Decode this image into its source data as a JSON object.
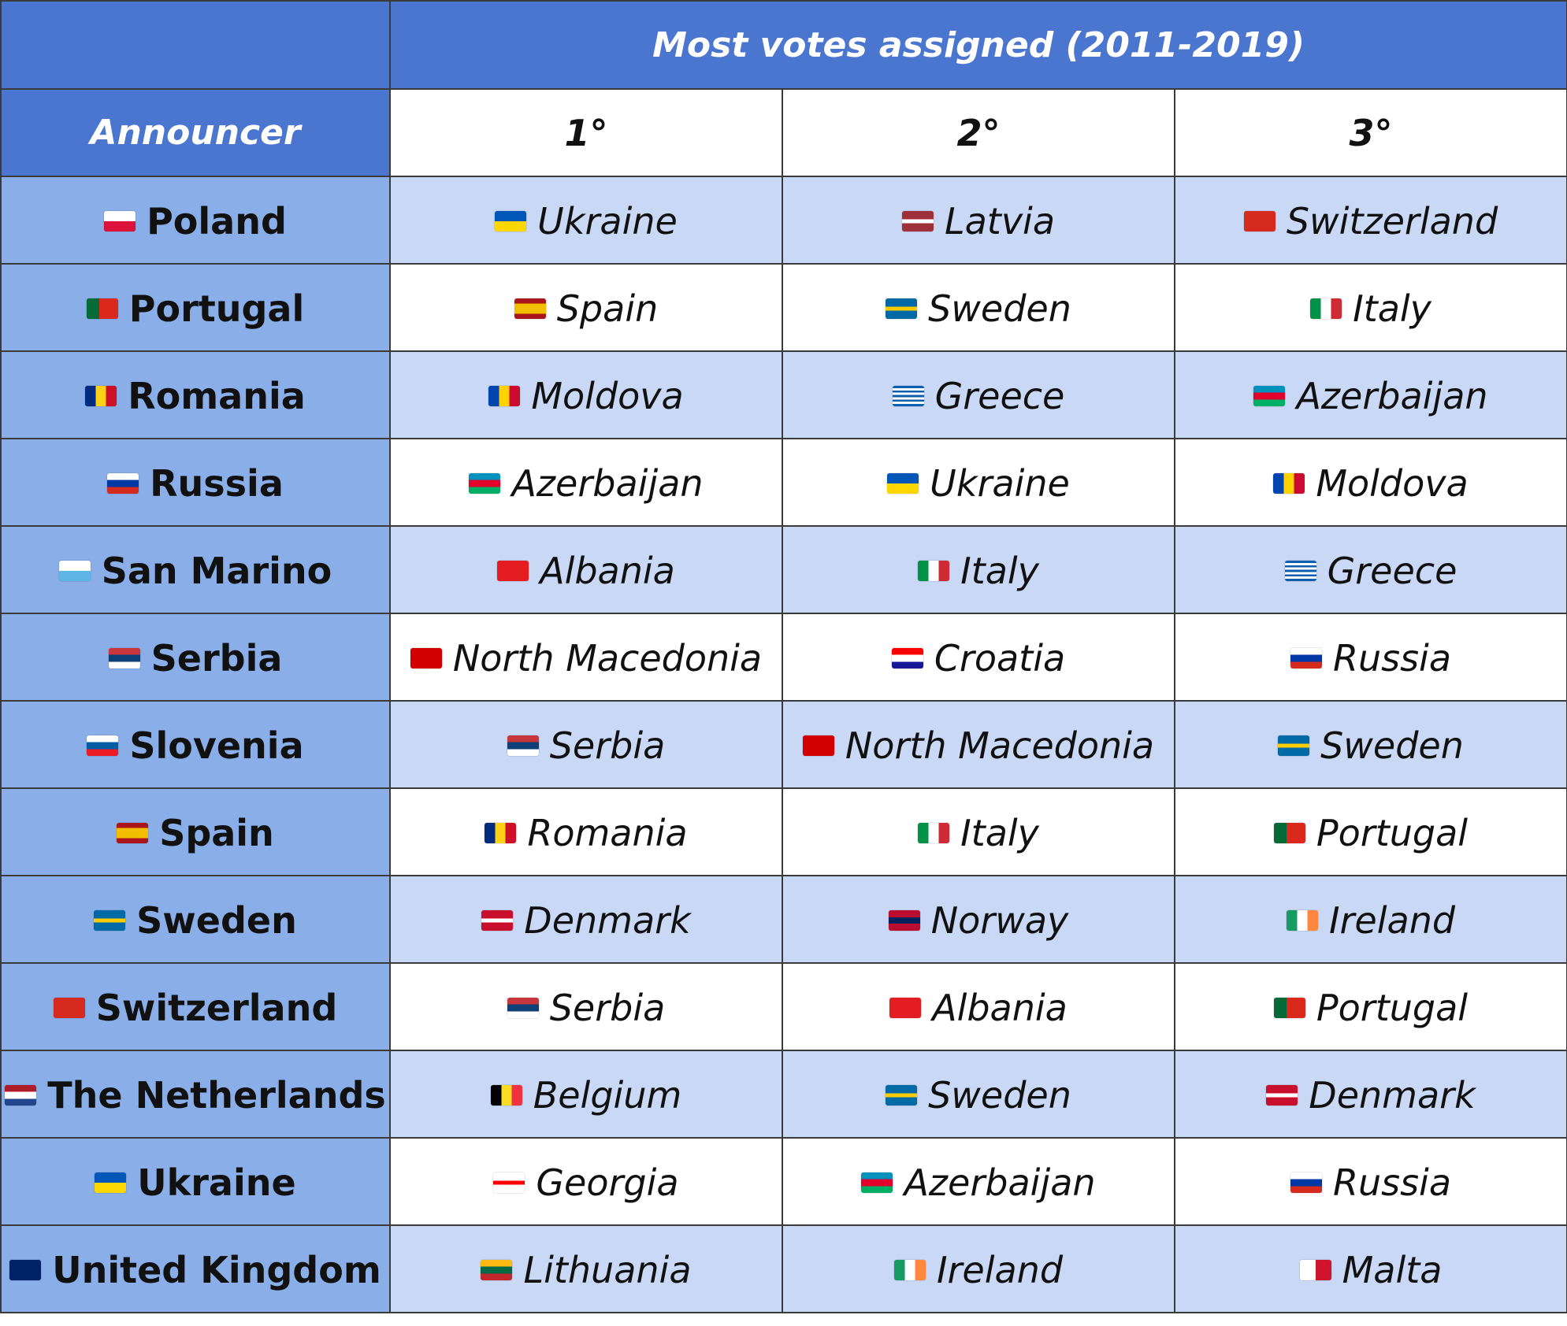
{
  "title": "Most votes assigned (2011-2019)",
  "announcer_header": "Announcer",
  "rank_headers": [
    "1°",
    "2°",
    "3°"
  ],
  "flags": {
    "Poland": "linear-gradient(#ffffff 0 50%, #dc143c 50% 100%)",
    "Portugal": "linear-gradient(90deg, #046a38 0 40%, #da291c 40% 100%)",
    "Romania": "linear-gradient(90deg, #002b7f 0 33.3%, #fcd116 33.3% 66.6%, #ce1126 66.6% 100%)",
    "Russia": "linear-gradient(#ffffff 0 33.3%, #0039a6 33.3% 66.6%, #d52b1e 66.6% 100%)",
    "San Marino": "linear-gradient(#ffffff 0 50%, #5eb6e4 50% 100%)",
    "Serbia": "linear-gradient(#c6363c 0 33.3%, #0c4076 33.3% 66.6%, #ffffff 66.6% 100%)",
    "Slovenia": "linear-gradient(#ffffff 0 33.3%, #005da4 33.3% 66.6%, #ed1c24 66.6% 100%)",
    "Spain": "linear-gradient(#aa151b 0 25%, #f1bf00 25% 75%, #aa151b 75% 100%)",
    "Sweden": "linear-gradient(#006aa7 0 40%, #fecc00 40% 60%, #006aa7 60% 100%)",
    "Switzerland": "linear-gradient(#d52b1e, #d52b1e)",
    "The Netherlands": "linear-gradient(#ae1c28 0 33.3%, #ffffff 33.3% 66.6%, #21468b 66.6% 100%)",
    "Ukraine": "linear-gradient(#0057b7 0 50%, #ffd700 50% 100%)",
    "United Kingdom": "linear-gradient(#012169, #012169)",
    "Latvia": "linear-gradient(#9e3039 0 40%, #ffffff 40% 60%, #9e3039 60% 100%)",
    "Italy": "linear-gradient(90deg, #009246 0 33.3%, #ffffff 33.3% 66.6%, #ce2b37 66.6% 100%)",
    "Moldova": "linear-gradient(90deg, #0046ae 0 33.3%, #ffd200 33.3% 66.6%, #cc092f 66.6% 100%)",
    "Greece": "repeating-linear-gradient(#0d5eaf 0 11.1%, #ffffff 11.1% 22.2%)",
    "Azerbaijan": "linear-gradient(#0092bc 0 33.3%, #e4002b 33.3% 66.6%, #00af66 66.6% 100%)",
    "Albania": "linear-gradient(#e41e20, #e41e20)",
    "North Macedonia": "linear-gradient(#d20000, #d20000)",
    "Croatia": "linear-gradient(#ff0000 0 33.3%, #ffffff 33.3% 66.6%, #171796 66.6% 100%)",
    "Denmark": "linear-gradient(#c8102e 0 40%, #ffffff 40% 60%, #c8102e 60% 100%)",
    "Norway": "linear-gradient(#ba0c2f 0 35%, #00205b 35% 65%, #ba0c2f 65% 100%)",
    "Ireland": "linear-gradient(90deg, #169b62 0 33.3%, #ffffff 33.3% 66.6%, #ff883e 66.6% 100%)",
    "Belgium": "linear-gradient(90deg, #000000 0 33.3%, #fdda24 33.3% 66.6%, #ef3340 66.6% 100%)",
    "Georgia": "linear-gradient(#ffffff 0 40%, #ff0000 40% 60%, #ffffff 60% 100%)",
    "Lithuania": "linear-gradient(#fdb913 0 33.3%, #006a44 33.3% 66.6%, #c1272d 66.6% 100%)",
    "Malta": "linear-gradient(90deg, #ffffff 0 50%, #cf142b 50% 100%)"
  },
  "rows": [
    {
      "announcer": "Poland",
      "first": "Ukraine",
      "second": "Latvia",
      "third": "Switzerland"
    },
    {
      "announcer": "Portugal",
      "first": "Spain",
      "second": "Sweden",
      "third": "Italy"
    },
    {
      "announcer": "Romania",
      "first": "Moldova",
      "second": "Greece",
      "third": "Azerbaijan"
    },
    {
      "announcer": "Russia",
      "first": "Azerbaijan",
      "second": "Ukraine",
      "third": "Moldova"
    },
    {
      "announcer": "San Marino",
      "first": "Albania",
      "second": "Italy",
      "third": "Greece"
    },
    {
      "announcer": "Serbia",
      "first": "North Macedonia",
      "second": "Croatia",
      "third": "Russia"
    },
    {
      "announcer": "Slovenia",
      "first": "Serbia",
      "second": "North Macedonia",
      "third": "Sweden"
    },
    {
      "announcer": "Spain",
      "first": "Romania",
      "second": "Italy",
      "third": "Portugal"
    },
    {
      "announcer": "Sweden",
      "first": "Denmark",
      "second": "Norway",
      "third": "Ireland"
    },
    {
      "announcer": "Switzerland",
      "first": "Serbia",
      "second": "Albania",
      "third": "Portugal"
    },
    {
      "announcer": "The Netherlands",
      "first": "Belgium",
      "second": "Sweden",
      "third": "Denmark"
    },
    {
      "announcer": "Ukraine",
      "first": "Georgia",
      "second": "Azerbaijan",
      "third": "Russia"
    },
    {
      "announcer": "United Kingdom",
      "first": "Lithuania",
      "second": "Ireland",
      "third": "Malta"
    }
  ]
}
